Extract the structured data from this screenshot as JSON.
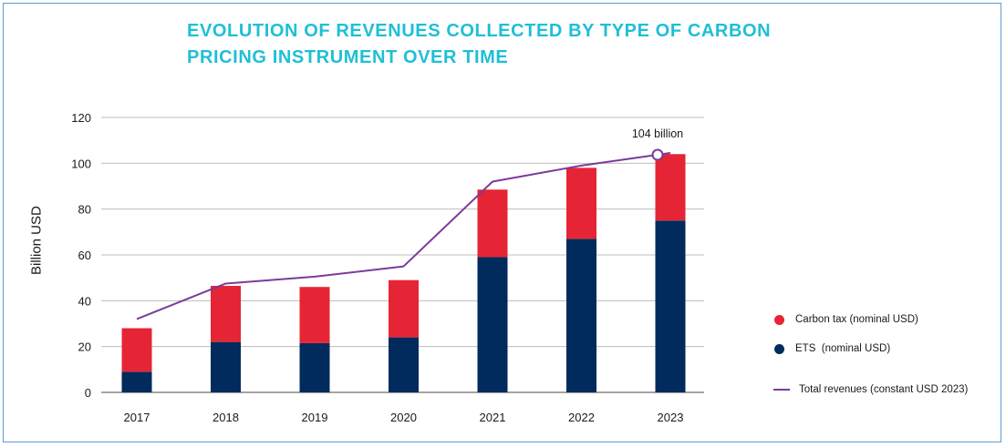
{
  "title_lines": [
    "EVOLUTION OF REVENUES COLLECTED BY TYPE OF CARBON",
    "PRICING INSTRUMENT OVER TIME"
  ],
  "colors": {
    "carbon_tax": "#e52535",
    "ets": "#002b5c",
    "total": "#7b3b9b",
    "title": "#1fbfd6",
    "frame": "#5b9bd5"
  },
  "chart_data": {
    "type": "bar",
    "stacked": true,
    "title": "EVOLUTION OF REVENUES COLLECTED BY TYPE OF CARBON PRICING INSTRUMENT OVER TIME",
    "xlabel": "",
    "ylabel": "Billion USD",
    "ylim": [
      0,
      120
    ],
    "yticks": [
      0,
      20,
      40,
      60,
      80,
      100,
      120
    ],
    "grid": true,
    "legend_position": "right",
    "categories": [
      "2017",
      "2018",
      "2019",
      "2020",
      "2021",
      "2022",
      "2023"
    ],
    "series": [
      {
        "name": "ETS  (nominal USD)",
        "kind": "bar",
        "values": [
          9,
          22,
          21.5,
          24,
          59,
          67,
          75
        ]
      },
      {
        "name": "Carbon tax (nominal USD)",
        "kind": "bar",
        "values": [
          19,
          24.5,
          24.5,
          25,
          29.5,
          31,
          29
        ]
      },
      {
        "name": "Total revenues (constant USD 2023)",
        "kind": "line",
        "values": [
          32,
          47.5,
          50.5,
          55,
          92,
          99,
          104.5
        ]
      }
    ],
    "annotations": [
      {
        "category": "2023",
        "series": "Total revenues (constant USD 2023)",
        "text": "104 billion"
      }
    ]
  },
  "legend": [
    {
      "label": "Carbon tax (nominal USD)",
      "kind": "dot",
      "color_key": "carbon_tax"
    },
    {
      "label": "ETS  (nominal USD)",
      "kind": "dot",
      "color_key": "ets"
    },
    {
      "label": "Total revenues (constant USD 2023)",
      "kind": "line",
      "color_key": "total"
    }
  ]
}
